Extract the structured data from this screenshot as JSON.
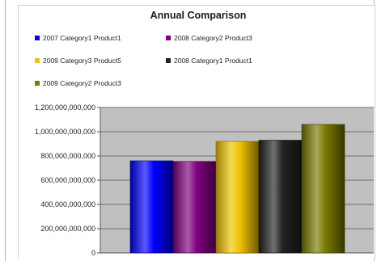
{
  "chart_data": {
    "type": "bar",
    "title": "Annual Comparison",
    "xlabel": "",
    "ylabel": "",
    "ylim": [
      0,
      1200000000000
    ],
    "yticks": [
      "0",
      "200,000,000,000",
      "400,000,000,000",
      "600,000,000,000",
      "800,000,000,000",
      "1,000,000,000,000",
      "1,200,000,000,000"
    ],
    "grid": true,
    "legend_position": "top",
    "series": [
      {
        "name": "2007 Category1 Product1",
        "color": "#0000ff",
        "values": [
          760000000000
        ]
      },
      {
        "name": "2008 Category2 Product3",
        "color": "#800080",
        "values": [
          755000000000
        ]
      },
      {
        "name": "2009 Category3 Product5",
        "color": "#f0c400",
        "values": [
          920000000000
        ]
      },
      {
        "name": "2008 Category1 Product1",
        "color": "#222222",
        "values": [
          930000000000
        ]
      },
      {
        "name": "2009 Category2 Product3",
        "color": "#7a7a00",
        "values": [
          1060000000000
        ]
      }
    ]
  }
}
